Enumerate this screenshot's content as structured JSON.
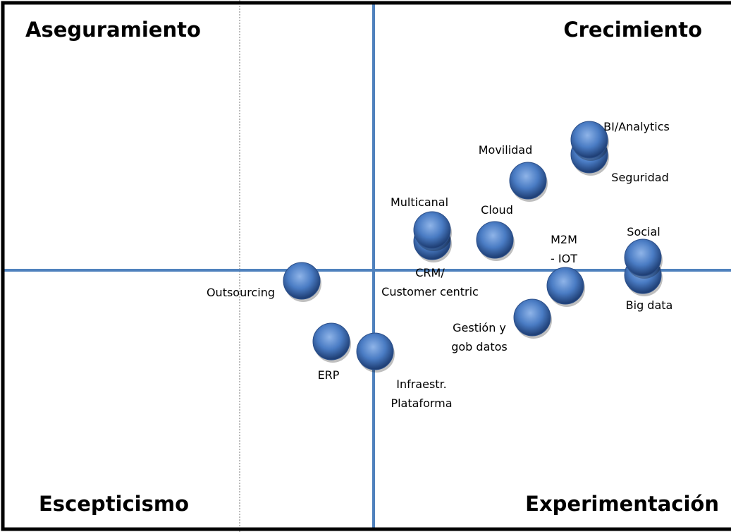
{
  "quadrants": {
    "top_left": "Aseguramiento",
    "top_right": "Crecimiento",
    "bottom_left": "Escepticismo",
    "bottom_right": "Experimentación"
  },
  "nodes": [
    {
      "label": [
        "Outsourcing"
      ]
    },
    {
      "label": [
        "ERP"
      ]
    },
    {
      "label": [
        "Infraestr.",
        "Plataforma"
      ]
    },
    {
      "label": [
        "Multicanal"
      ]
    },
    {
      "label": [
        "CRM/",
        "Customer centric"
      ]
    },
    {
      "label": [
        "Cloud"
      ]
    },
    {
      "label": [
        "Movilidad"
      ]
    },
    {
      "label": [
        "BI/Analytics"
      ]
    },
    {
      "label": [
        "Seguridad"
      ]
    },
    {
      "label": [
        "Social"
      ]
    },
    {
      "label": [
        "Big data"
      ]
    },
    {
      "label": [
        "M2M",
        "- IOT"
      ]
    },
    {
      "label": [
        "Gestión y",
        "gob datos"
      ]
    }
  ]
}
